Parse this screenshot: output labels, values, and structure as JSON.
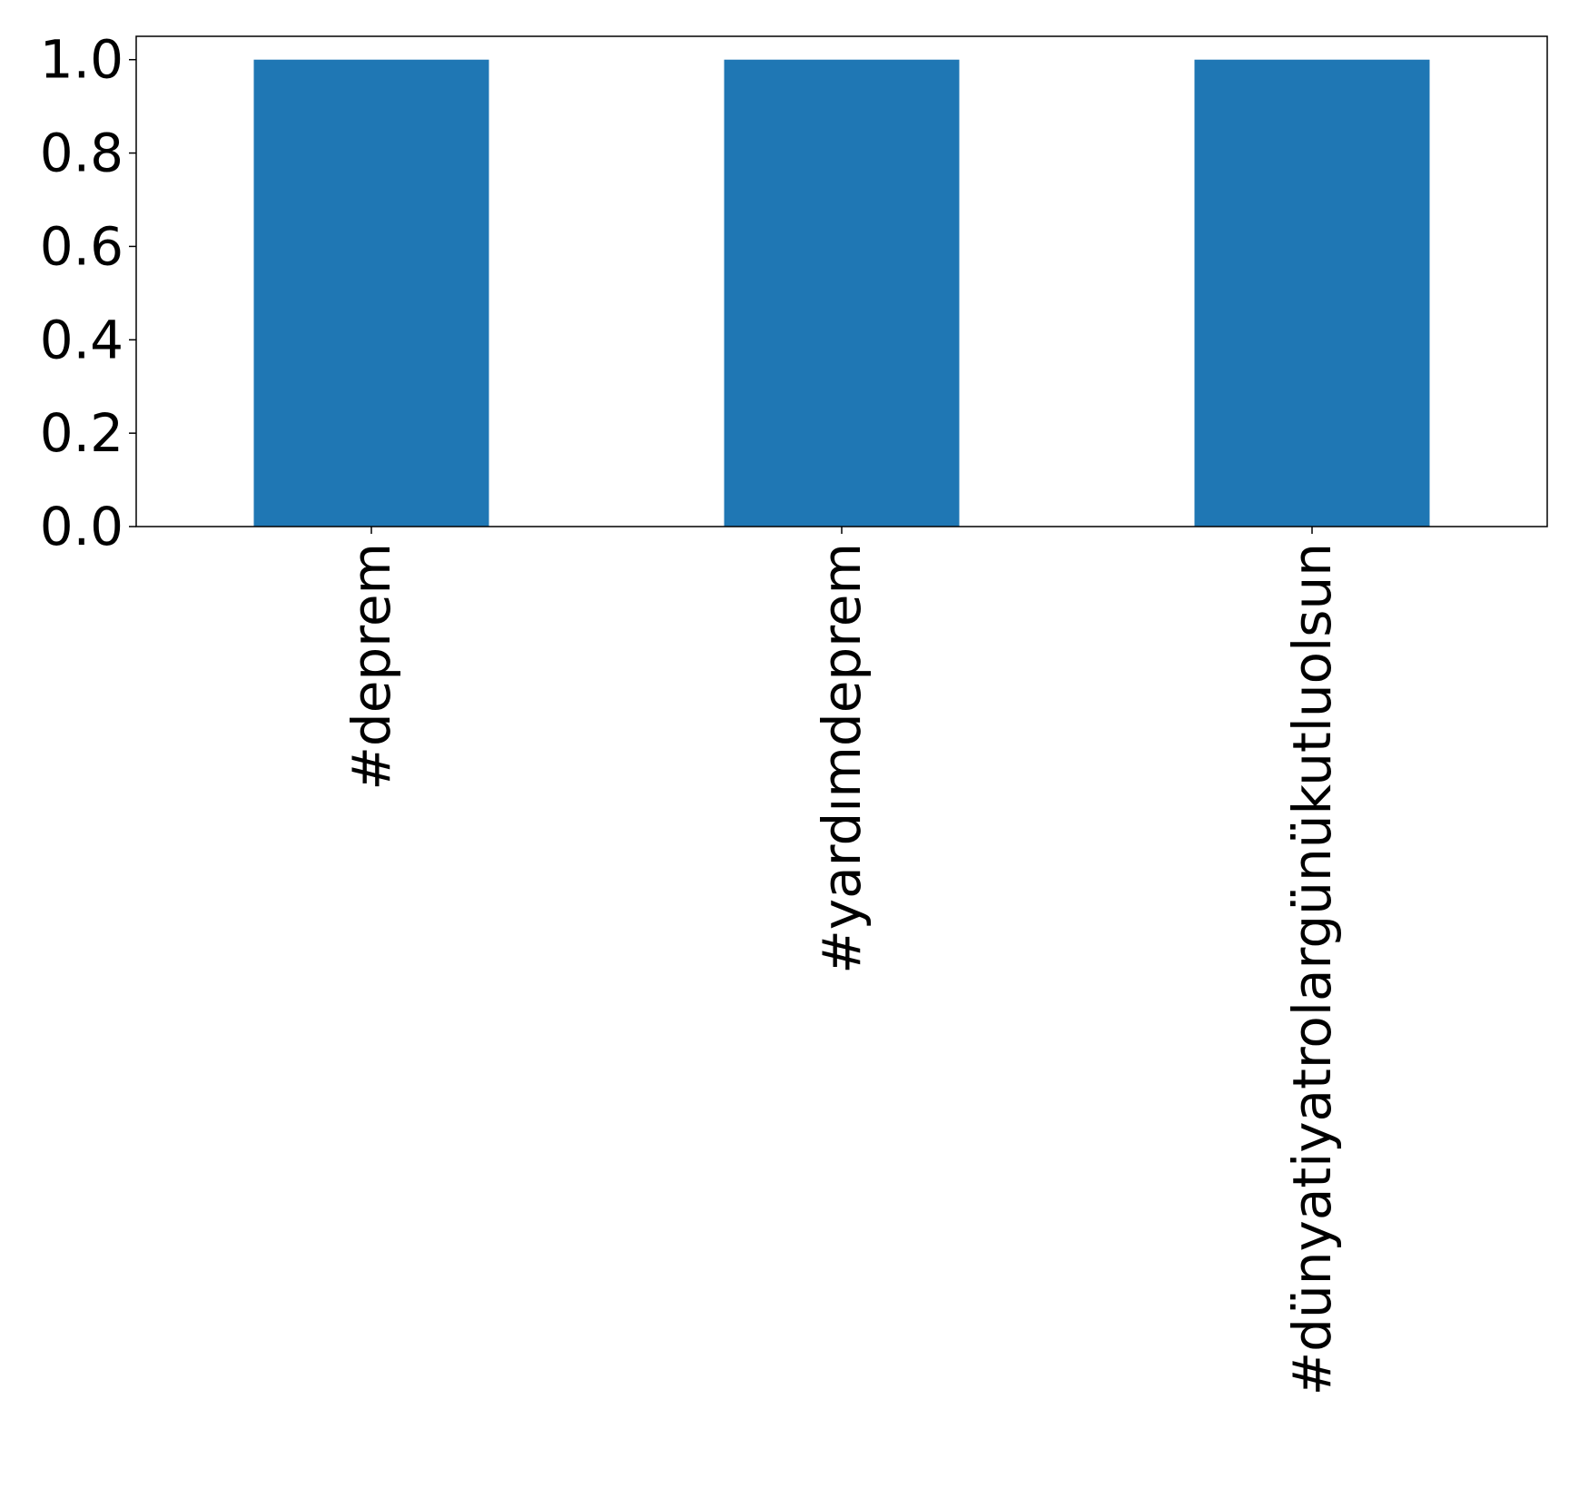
{
  "chart_data": {
    "type": "bar",
    "categories": [
      "#deprem",
      "#yardımdeprem",
      "#dünyatiyatrolargünükutluolsun"
    ],
    "values": [
      1.0,
      1.0,
      1.0
    ],
    "ylim": [
      0,
      1.05
    ],
    "yticks": [
      "0.0",
      "0.2",
      "0.4",
      "0.6",
      "0.8",
      "1.0"
    ],
    "title": "",
    "xlabel": "",
    "ylabel": "",
    "grid": false,
    "bar_color": "#1f77b4"
  }
}
